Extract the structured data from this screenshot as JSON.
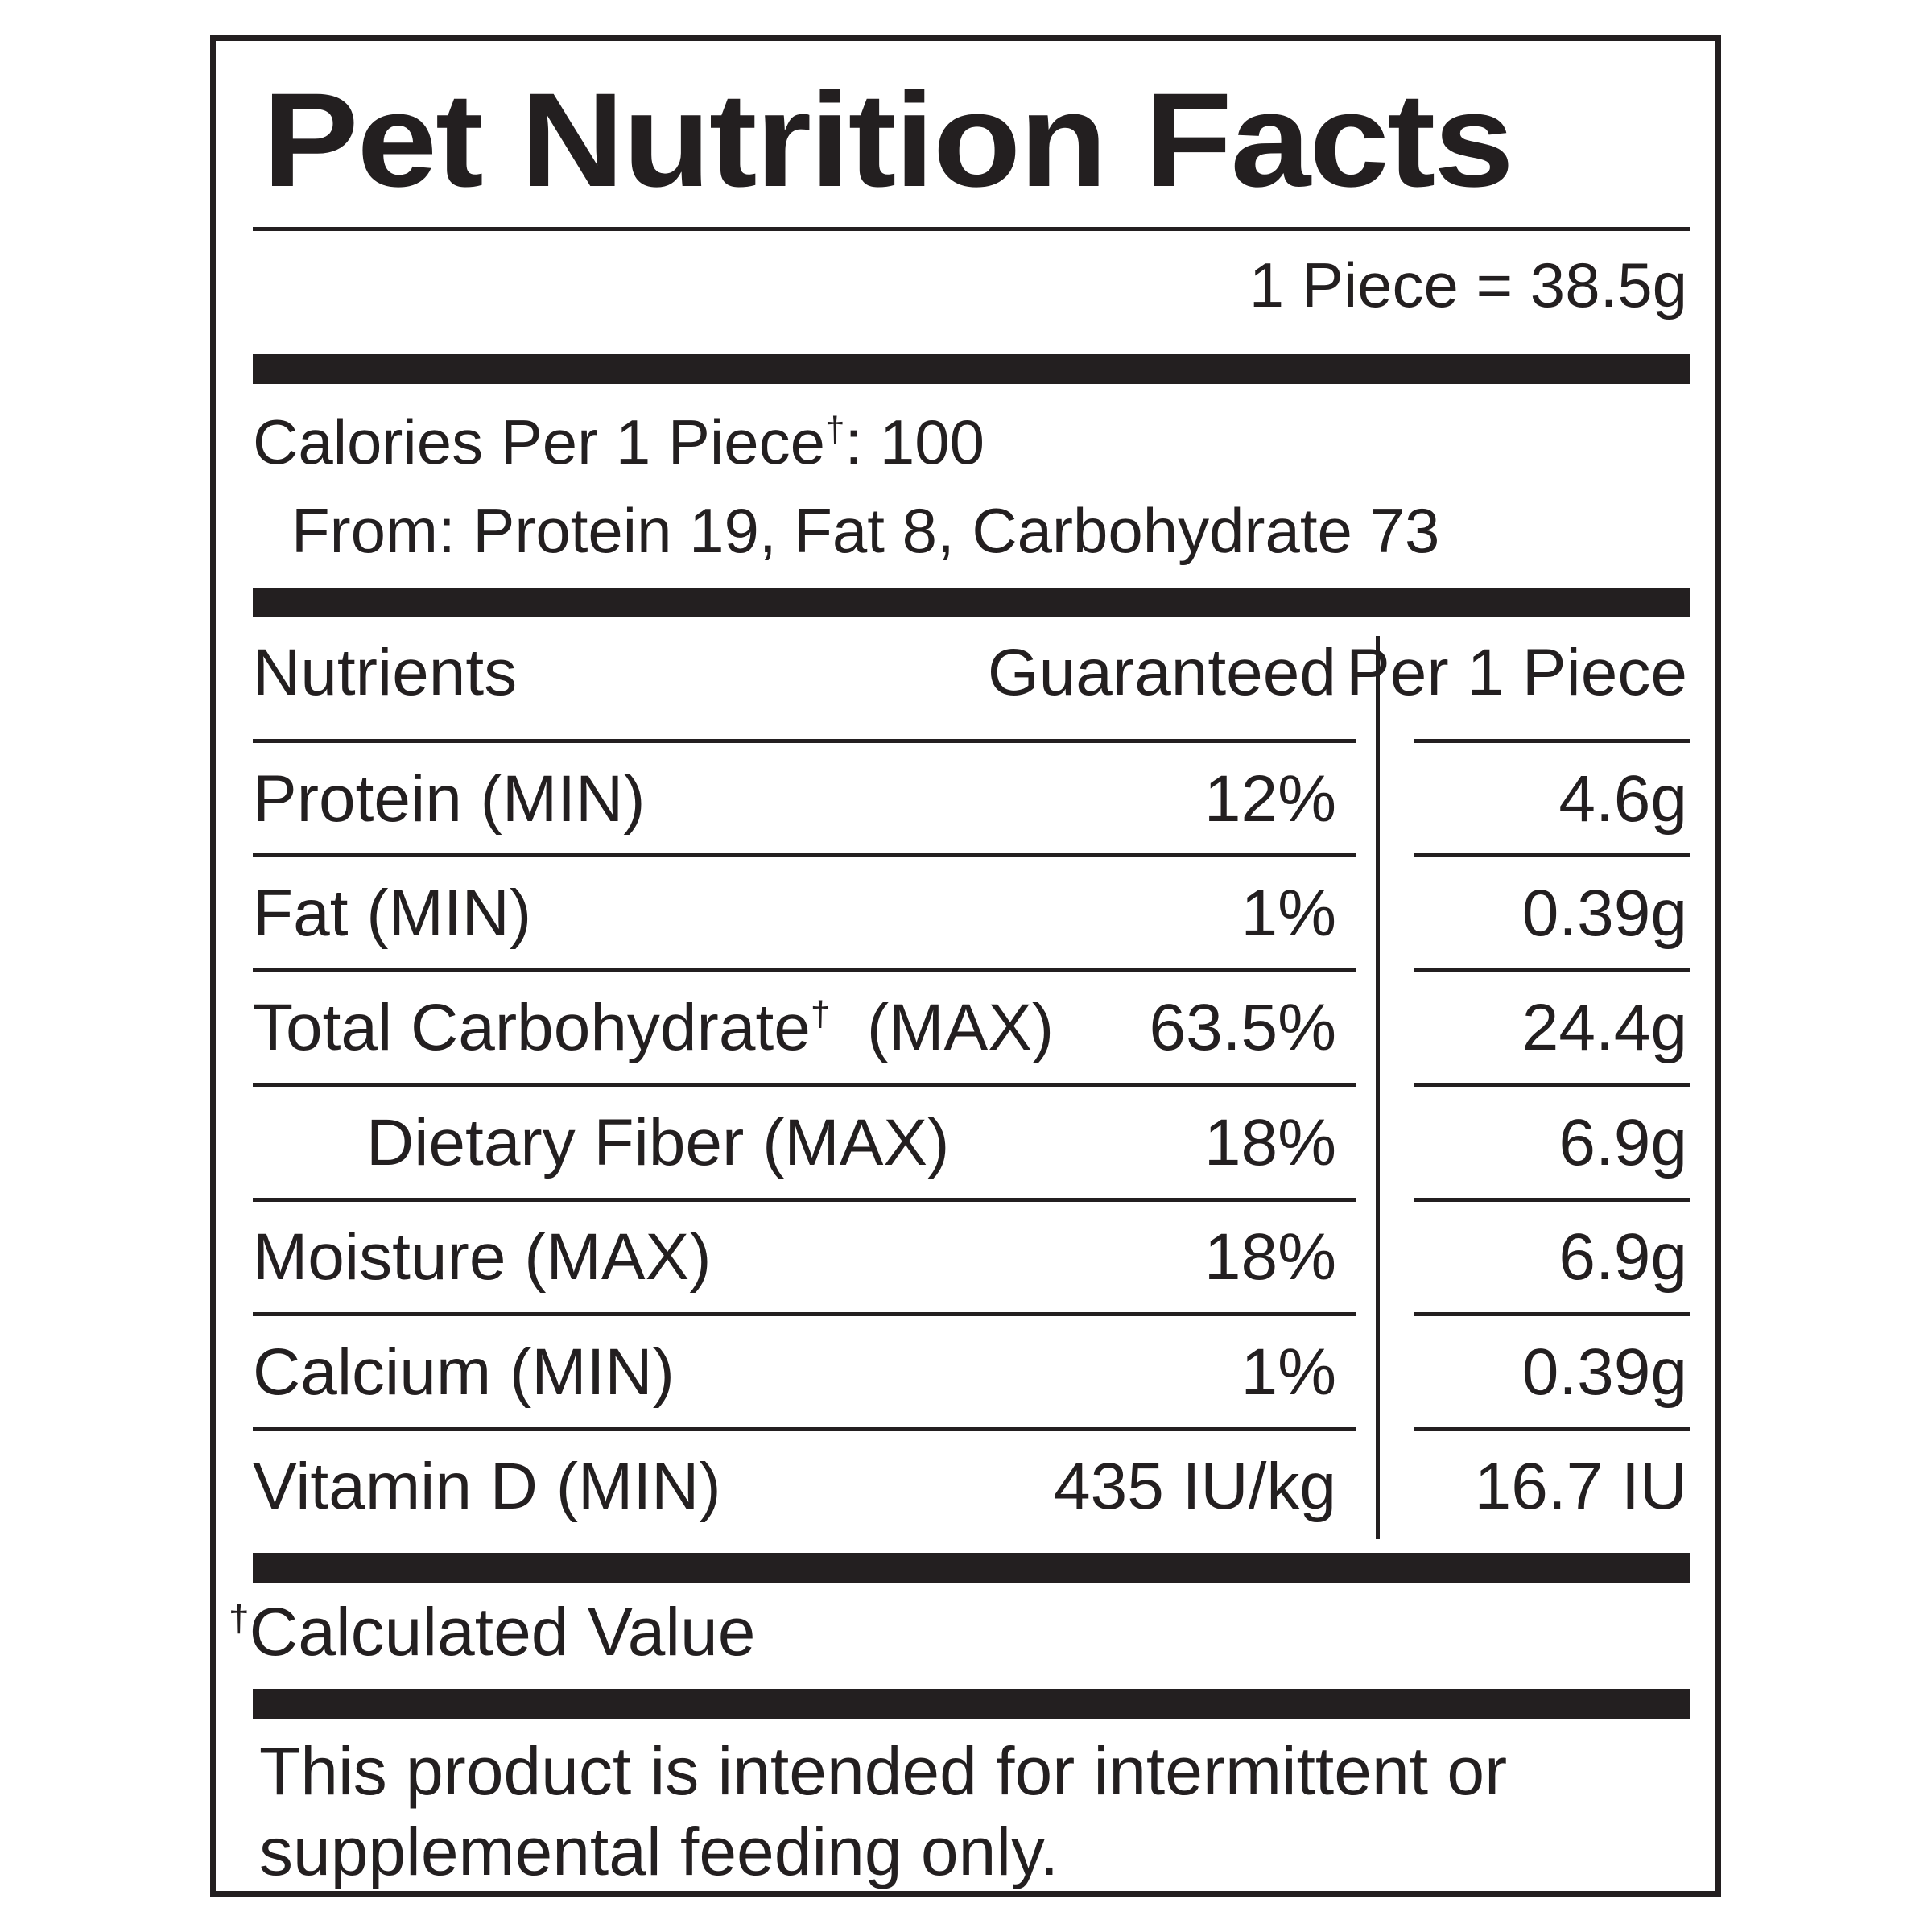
{
  "label": {
    "title": "Pet Nutrition Facts",
    "serving_size": "1 Piece = 38.5g",
    "calories_line": "Calories Per 1 Piece",
    "calories_dagger": "†",
    "calories_value": ": 100",
    "calories_from": "From: Protein 19, Fat 8, Carbohydrate 73"
  },
  "table": {
    "headers": {
      "nutrients": "Nutrients",
      "guaranteed": "Guaranteed",
      "per_piece": "Per 1 Piece"
    },
    "rows": [
      {
        "name": "Protein (MIN)",
        "guaranteed": "12%",
        "per_piece": "4.6g"
      },
      {
        "name": "Fat (MIN)",
        "guaranteed": "1%",
        "per_piece": "0.39g"
      },
      {
        "name": "Total Carbohydrate",
        "name_dagger": "†",
        "name_suffix": "  (MAX)",
        "guaranteed": "63.5%",
        "per_piece": "24.4g"
      },
      {
        "name": "Dietary Fiber (MAX)",
        "guaranteed": "18%",
        "per_piece": "6.9g"
      },
      {
        "name": "Moisture (MAX)",
        "guaranteed": "18%",
        "per_piece": "6.9g"
      },
      {
        "name": "Calcium (MIN)",
        "guaranteed": "1%",
        "per_piece": "0.39g"
      },
      {
        "name": "Vitamin D (MIN)",
        "guaranteed": "435 IU/kg",
        "per_piece": "16.7 IU"
      }
    ]
  },
  "footnote": {
    "dagger": "†",
    "text": "Calculated Value"
  },
  "disclaimer": {
    "line1": "This product is intended for intermittent or",
    "line2": "supplemental feeding only."
  },
  "colors": {
    "ink": "#231f20",
    "background": "#ffffff"
  }
}
